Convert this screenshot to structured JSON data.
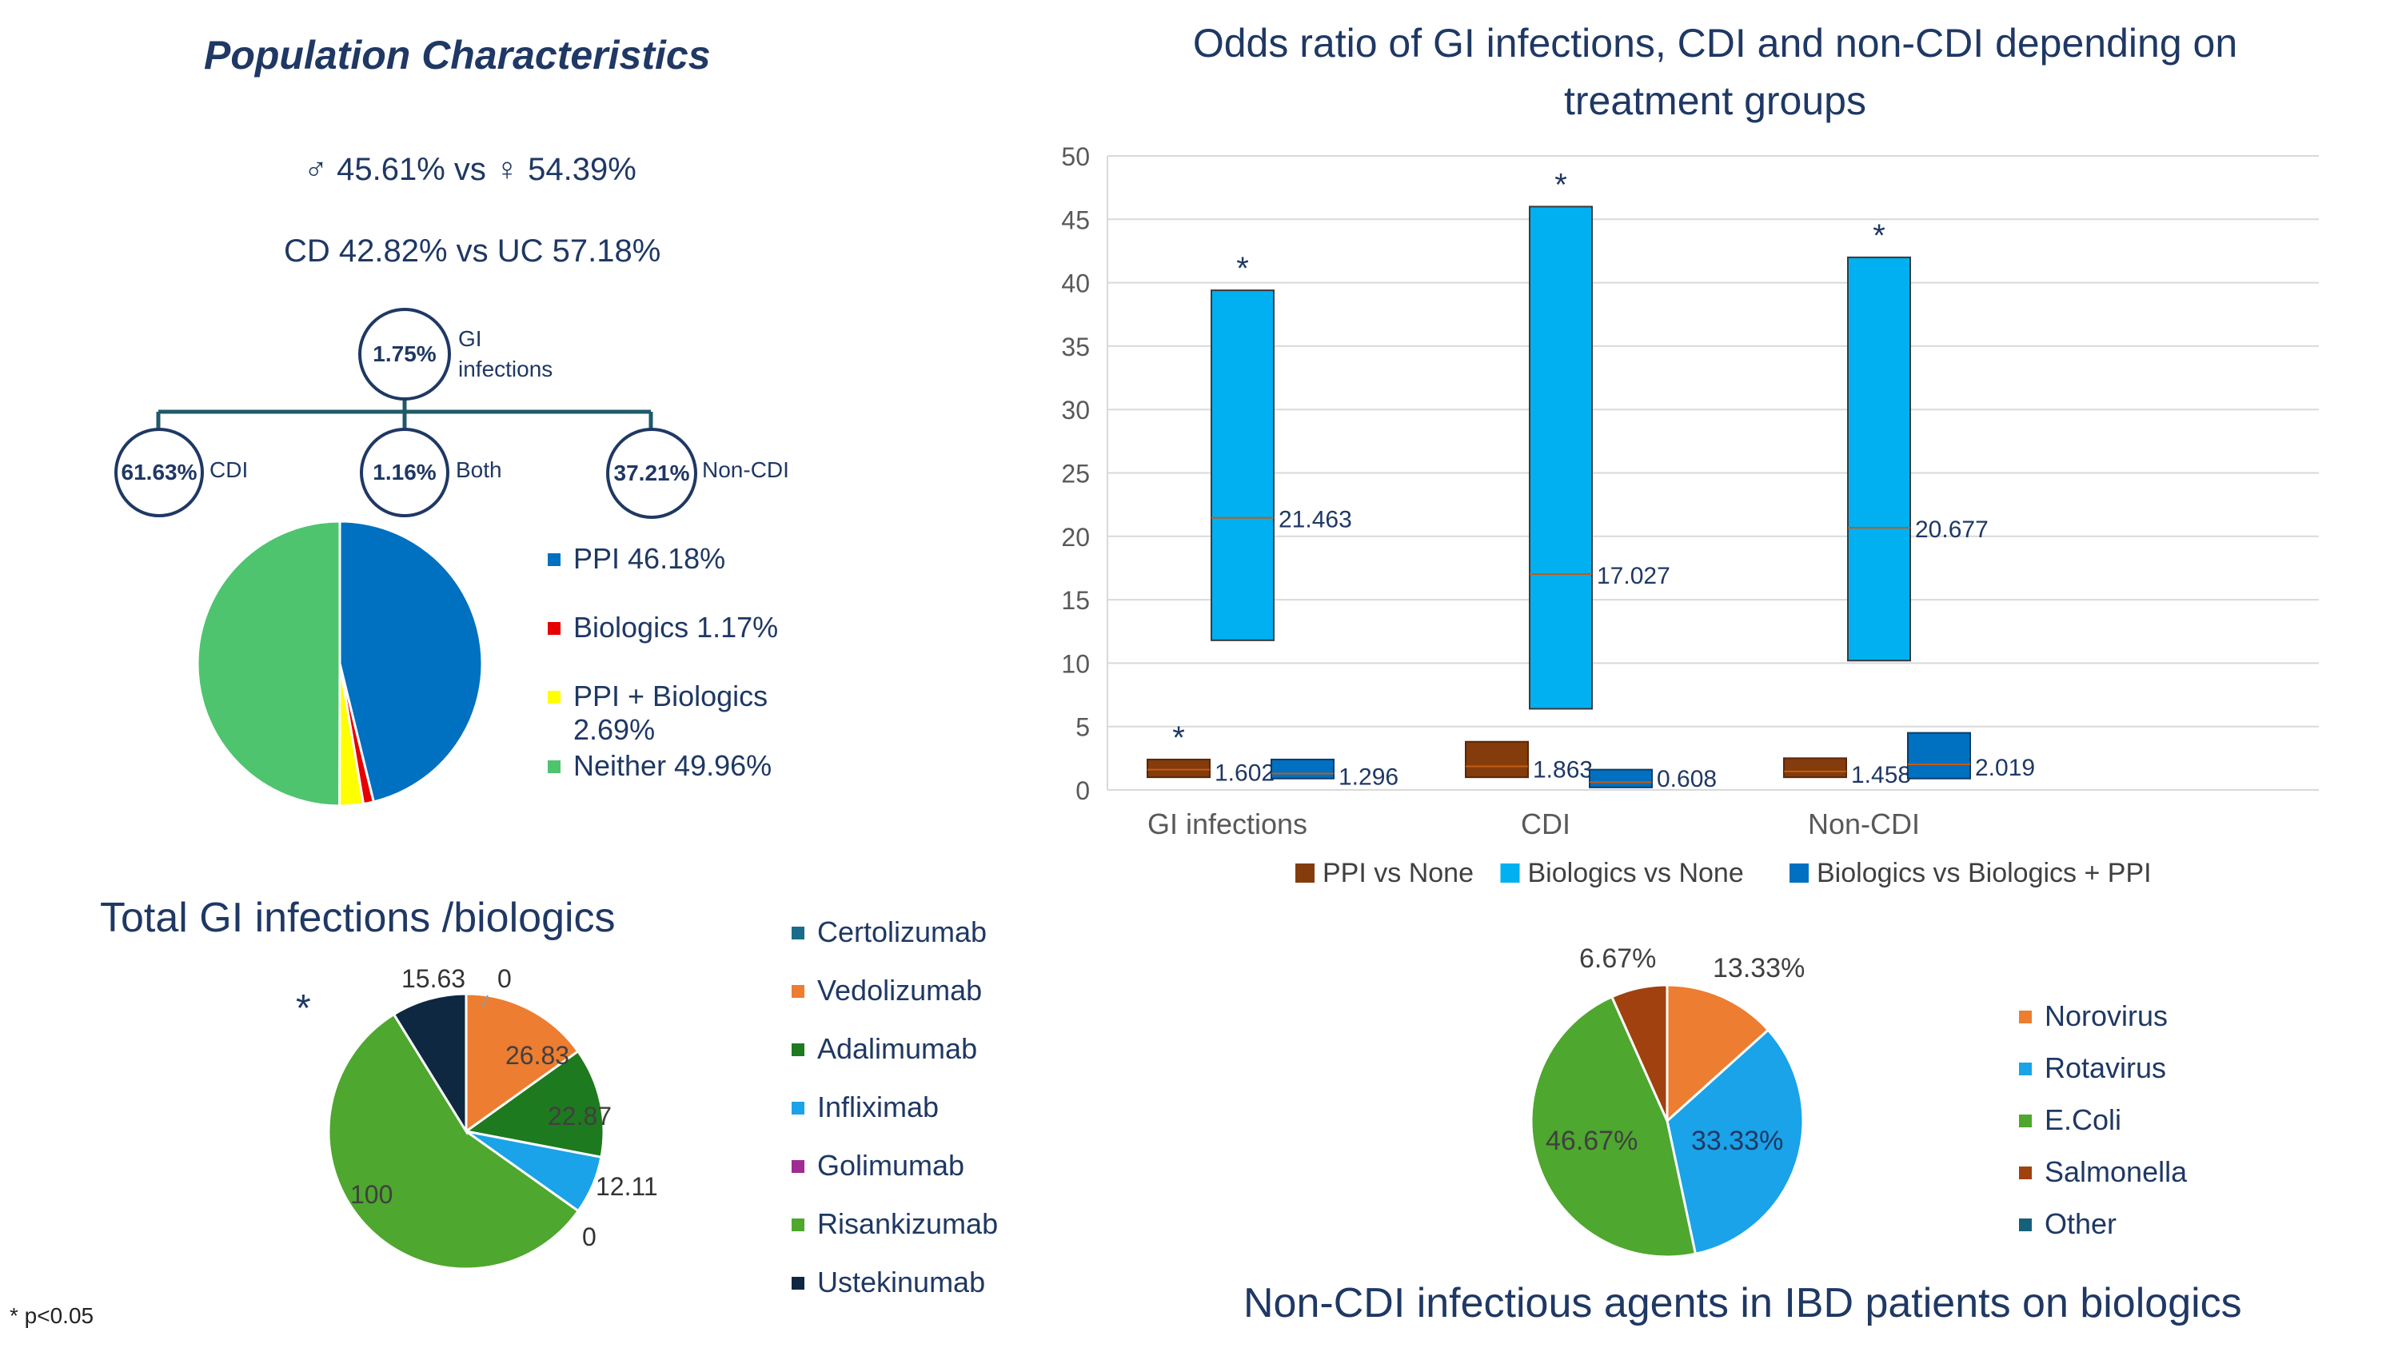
{
  "population": {
    "title": "Population Characteristics",
    "sex_line": "♂ 45.61% vs ♀ 54.39%",
    "disease_line": "CD 42.82% vs UC 57.18%",
    "tree": {
      "root": {
        "value": "1.75%",
        "label": "GI infections"
      },
      "children": [
        {
          "value": "61.63%",
          "label": "CDI"
        },
        {
          "value": "1.16%",
          "label": "Both"
        },
        {
          "value": "37.21%",
          "label": "Non-CDI"
        }
      ]
    }
  },
  "colors": {
    "navy": "#1f3864",
    "ppi": "#0070c0",
    "bio": "#e60000",
    "ppibio": "#ffff00",
    "neither": "#4ec46e",
    "brown": "#843c0c",
    "lightblue": "#00b0f0",
    "midblue": "#0070c0"
  },
  "chart_data": [
    {
      "type": "pie",
      "id": "treatment-pie",
      "legend": [
        "PPI 46.18%",
        "Biologics 1.17%",
        "PPI + Biologics 2.69%",
        "Neither 49.96%"
      ],
      "slices": [
        {
          "name": "PPI",
          "value": 46.18,
          "color": "#0070c0"
        },
        {
          "name": "Biologics",
          "value": 1.17,
          "color": "#e60000"
        },
        {
          "name": "PPI + Biologics",
          "value": 2.69,
          "color": "#ffff00"
        },
        {
          "name": "Neither",
          "value": 49.96,
          "color": "#4ec46e"
        }
      ]
    },
    {
      "type": "bar",
      "id": "odds-ratio",
      "title": "Odds ratio of GI infections, CDI and non-CDI depending on treatment groups",
      "categories": [
        "GI infections",
        "CDI",
        "Non-CDI"
      ],
      "ylim": [
        0,
        50
      ],
      "yticks": [
        0,
        5,
        10,
        15,
        20,
        25,
        30,
        35,
        40,
        45,
        50
      ],
      "series": [
        {
          "name": "PPI vs None",
          "color": "#843c0c",
          "boxes": [
            {
              "low": 1.0,
              "high": 2.4,
              "mid": 1.602,
              "label": "1.602"
            },
            {
              "low": 1.0,
              "high": 3.8,
              "mid": 1.863,
              "label": "1.863"
            },
            {
              "low": 1.0,
              "high": 2.5,
              "mid": 1.458,
              "label": "1.458"
            }
          ]
        },
        {
          "name": "Biologics vs None",
          "color": "#00b0f0",
          "boxes": [
            {
              "low": 11.8,
              "high": 39.4,
              "mid": 21.463,
              "label": "21.463"
            },
            {
              "low": 6.4,
              "high": 46.0,
              "mid": 17.027,
              "label": "17.027"
            },
            {
              "low": 10.2,
              "high": 42.0,
              "mid": 20.677,
              "label": "20.677"
            }
          ]
        },
        {
          "name": "Biologics vs Biologics + PPI",
          "color": "#0070c0",
          "boxes": [
            {
              "low": 0.9,
              "high": 2.4,
              "mid": 1.296,
              "label": "1.296"
            },
            {
              "low": 0.2,
              "high": 1.6,
              "mid": 0.608,
              "label": "0.608"
            },
            {
              "low": 0.9,
              "high": 4.5,
              "mid": 2.019,
              "label": "2.019"
            }
          ]
        }
      ],
      "significance": [
        {
          "series": "PPI vs None",
          "category": "GI infections",
          "mark": "*"
        },
        {
          "series": "Biologics vs None",
          "category": "GI infections",
          "mark": "*"
        },
        {
          "series": "Biologics vs None",
          "category": "CDI",
          "mark": "*"
        },
        {
          "series": "Biologics vs None",
          "category": "Non-CDI",
          "mark": "*"
        }
      ]
    },
    {
      "type": "pie",
      "id": "biologics-pie",
      "title": "Total GI infections /biologics",
      "legend": [
        "Certolizumab",
        "Vedolizumab",
        "Adalimumab",
        "Infliximab",
        "Golimumab",
        "Risankizumab",
        "Ustekinumab"
      ],
      "slices": [
        {
          "name": "Certolizumab",
          "value": 0,
          "label": "0",
          "color": "#1b6b8a"
        },
        {
          "name": "Vedolizumab",
          "value": 26.83,
          "label": "26.83",
          "color": "#ed7d31"
        },
        {
          "name": "Adalimumab",
          "value": 22.87,
          "label": "22.87",
          "color": "#1e7a1e"
        },
        {
          "name": "Infliximab",
          "value": 12.11,
          "label": "12.11",
          "color": "#1aa3e8"
        },
        {
          "name": "Golimumab",
          "value": 0,
          "label": "0",
          "color": "#a02b93"
        },
        {
          "name": "Risankizumab",
          "value": 100,
          "label": "100",
          "color": "#4ea72e"
        },
        {
          "name": "Ustekinumab",
          "value": 15.63,
          "label": "15.63",
          "color": "#0e2841"
        }
      ],
      "significance_mark": "*"
    },
    {
      "type": "pie",
      "id": "agents-pie",
      "title": "Non-CDI infectious agents in IBD patients on biologics",
      "legend": [
        "Norovirus",
        "Rotavirus",
        "E.Coli",
        "Salmonella",
        "Other"
      ],
      "slices": [
        {
          "name": "Norovirus",
          "value": 13.33,
          "label": "13.33%",
          "color": "#ed7d31"
        },
        {
          "name": "Rotavirus",
          "value": 33.33,
          "label": "33.33%",
          "color": "#1aa3e8"
        },
        {
          "name": "E.Coli",
          "value": 46.67,
          "label": "46.67%",
          "color": "#4ea72e"
        },
        {
          "name": "Salmonella",
          "value": 6.67,
          "label": "6.67%",
          "color": "#a0410f"
        },
        {
          "name": "Other",
          "value": 0,
          "label": "",
          "color": "#17607a"
        }
      ]
    }
  ],
  "footnote": "* p<0.05"
}
